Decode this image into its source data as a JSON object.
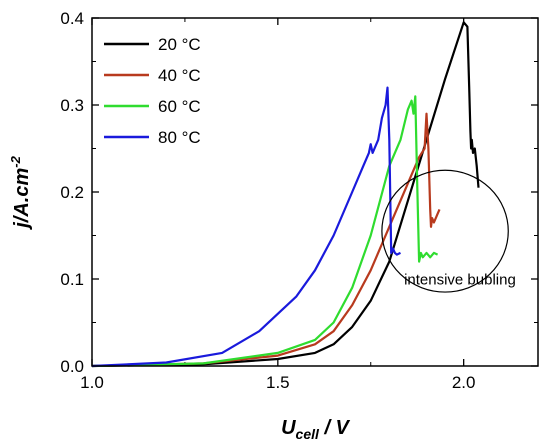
{
  "chart_data": {
    "type": "line",
    "xlabel_main": "U",
    "xlabel_sub": "cell",
    "xlabel_unit": " / V",
    "ylabel_main": "j/A.cm",
    "ylabel_sup": "-2",
    "xlim": [
      1.0,
      2.2
    ],
    "ylim": [
      0.0,
      0.4
    ],
    "xticks": [
      "1.0",
      "1.5",
      "2.0"
    ],
    "xtick_values": [
      1.0,
      1.5,
      2.0
    ],
    "yticks": [
      "0.0",
      "0.1",
      "0.2",
      "0.3",
      "0.4"
    ],
    "ytick_values": [
      0.0,
      0.1,
      0.2,
      0.3,
      0.4
    ],
    "legend_position": "top-left",
    "annotation": {
      "text": "intensive bubling",
      "ellipse_center": [
        1.95,
        0.155
      ],
      "ellipse_radii": [
        0.17,
        0.07
      ]
    },
    "series": [
      {
        "name": "20 °C",
        "color": "#000000",
        "x": [
          1.0,
          1.3,
          1.5,
          1.6,
          1.65,
          1.7,
          1.75,
          1.8,
          1.85,
          1.9,
          1.95,
          2.0,
          2.01,
          2.015,
          2.018,
          2.02,
          2.022,
          2.025,
          2.03,
          2.035,
          2.04
        ],
        "y": [
          0.0,
          0.002,
          0.008,
          0.015,
          0.025,
          0.045,
          0.075,
          0.12,
          0.19,
          0.26,
          0.33,
          0.395,
          0.39,
          0.32,
          0.27,
          0.25,
          0.26,
          0.245,
          0.25,
          0.23,
          0.205
        ]
      },
      {
        "name": "40 °C",
        "color": "#b83a1e",
        "x": [
          1.0,
          1.3,
          1.5,
          1.6,
          1.65,
          1.7,
          1.75,
          1.8,
          1.85,
          1.88,
          1.895,
          1.9,
          1.905,
          1.91,
          1.912,
          1.915,
          1.92,
          1.925,
          1.93,
          1.935
        ],
        "y": [
          0.0,
          0.003,
          0.012,
          0.025,
          0.04,
          0.07,
          0.11,
          0.16,
          0.21,
          0.24,
          0.25,
          0.29,
          0.25,
          0.18,
          0.16,
          0.17,
          0.165,
          0.17,
          0.175,
          0.18
        ]
      },
      {
        "name": "60 °C",
        "color": "#2fdc2f",
        "x": [
          1.0,
          1.3,
          1.5,
          1.6,
          1.65,
          1.7,
          1.75,
          1.8,
          1.83,
          1.85,
          1.86,
          1.865,
          1.87,
          1.875,
          1.88,
          1.885,
          1.89,
          1.9,
          1.91,
          1.92,
          1.93
        ],
        "y": [
          0.0,
          0.003,
          0.015,
          0.03,
          0.05,
          0.09,
          0.15,
          0.23,
          0.26,
          0.295,
          0.305,
          0.29,
          0.31,
          0.21,
          0.12,
          0.13,
          0.125,
          0.13,
          0.125,
          0.13,
          0.128
        ]
      },
      {
        "name": "80 °C",
        "color": "#1a1adc",
        "x": [
          1.0,
          1.2,
          1.35,
          1.45,
          1.55,
          1.6,
          1.65,
          1.7,
          1.73,
          1.745,
          1.75,
          1.755,
          1.77,
          1.78,
          1.79,
          1.795,
          1.8,
          1.805,
          1.81,
          1.815,
          1.82,
          1.83
        ],
        "y": [
          0.0,
          0.004,
          0.015,
          0.04,
          0.08,
          0.11,
          0.15,
          0.2,
          0.23,
          0.245,
          0.255,
          0.245,
          0.26,
          0.285,
          0.3,
          0.32,
          0.26,
          0.13,
          0.135,
          0.13,
          0.128,
          0.13
        ]
      }
    ]
  }
}
